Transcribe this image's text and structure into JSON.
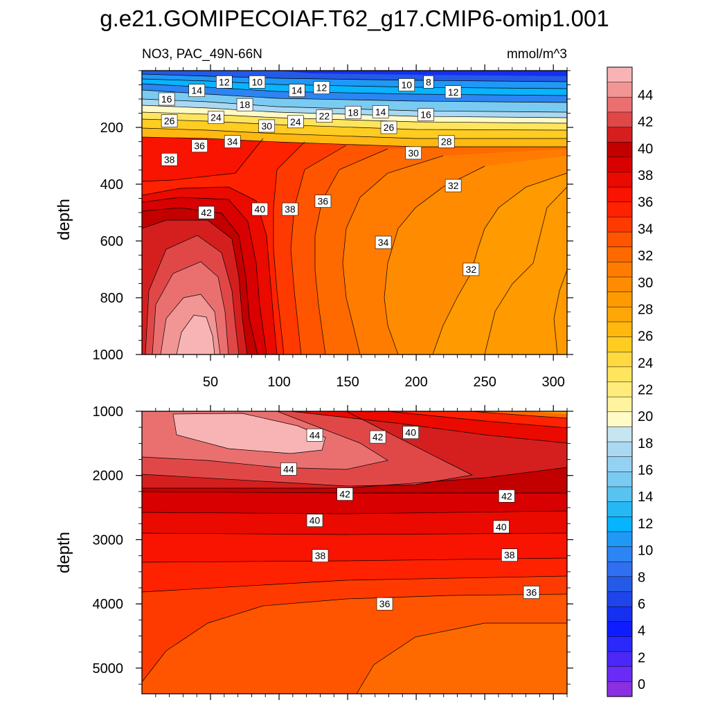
{
  "chart_data": {
    "type": "contour",
    "title": "g.e21.GOMIPECOIAF.T62_g17.CMIP6-omip1.001",
    "variable_label": "NO3, PAC_49N-66N",
    "units": "mmol/m^3",
    "colorbar": {
      "levels": [
        0,
        2,
        4,
        6,
        8,
        10,
        12,
        14,
        16,
        18,
        20,
        22,
        24,
        26,
        28,
        30,
        32,
        34,
        36,
        38,
        40,
        42,
        44
      ],
      "tick_labels": [
        "0",
        "2",
        "4",
        "6",
        "8",
        "10",
        "12",
        "14",
        "16",
        "18",
        "20",
        "22",
        "24",
        "26",
        "28",
        "30",
        "32",
        "34",
        "36",
        "38",
        "40",
        "42",
        "44"
      ],
      "colors": [
        "#8a30e0",
        "#6a2bf5",
        "#4b28f8",
        "#2a28fb",
        "#0f1cff",
        "#1530f0",
        "#1f45ea",
        "#255ae6",
        "#2f6ff0",
        "#2c85f2",
        "#2098f6",
        "#06b4ff",
        "#26b8f4",
        "#58c3f0",
        "#7acbf1",
        "#95d1f2",
        "#abd8f2",
        "#c6e5f1",
        "#fffac6",
        "#fff3a0",
        "#ffec7a",
        "#ffe55e",
        "#ffd940",
        "#ffcc22",
        "#ffb810",
        "#ffa708",
        "#ff9a00",
        "#ff8c00",
        "#ff7c00",
        "#ff6a00",
        "#ff5500",
        "#ff3a00",
        "#ff2200",
        "#f81400",
        "#ea0a00",
        "#d80000",
        "#c20000",
        "#d51f1f",
        "#e04848",
        "#ea7070",
        "#f29595",
        "#f8b4b4"
      ]
    },
    "panels": [
      {
        "name": "upper",
        "x_range": [
          0,
          310
        ],
        "y_range": [
          0,
          1000
        ],
        "ylabel": "depth",
        "x_ticks": [
          "50",
          "100",
          "150",
          "200",
          "250",
          "300"
        ],
        "y_ticks": [
          "200",
          "400",
          "600",
          "800",
          "1000"
        ],
        "x_tick_values": [
          50,
          100,
          150,
          200,
          250,
          300
        ],
        "y_tick_values": [
          200,
          400,
          600,
          800,
          1000
        ],
        "contour_labels": [
          {
            "text": "16",
            "x": 18,
            "y": 100
          },
          {
            "text": "14",
            "x": 40,
            "y": 70
          },
          {
            "text": "12",
            "x": 60,
            "y": 40
          },
          {
            "text": "10",
            "x": 84,
            "y": 40
          },
          {
            "text": "14",
            "x": 113,
            "y": 70
          },
          {
            "text": "12",
            "x": 131,
            "y": 60
          },
          {
            "text": "10",
            "x": 193,
            "y": 50
          },
          {
            "text": "8",
            "x": 209,
            "y": 40
          },
          {
            "text": "12",
            "x": 227,
            "y": 75
          },
          {
            "text": "26",
            "x": 20,
            "y": 177
          },
          {
            "text": "24",
            "x": 54,
            "y": 165
          },
          {
            "text": "18",
            "x": 75,
            "y": 120
          },
          {
            "text": "30",
            "x": 91,
            "y": 195
          },
          {
            "text": "24",
            "x": 112,
            "y": 180
          },
          {
            "text": "22",
            "x": 133,
            "y": 160
          },
          {
            "text": "18",
            "x": 154,
            "y": 147
          },
          {
            "text": "14",
            "x": 174,
            "y": 145
          },
          {
            "text": "16",
            "x": 207,
            "y": 155
          },
          {
            "text": "26",
            "x": 180,
            "y": 200
          },
          {
            "text": "28",
            "x": 222,
            "y": 250
          },
          {
            "text": "30",
            "x": 198,
            "y": 290
          },
          {
            "text": "36",
            "x": 42,
            "y": 265
          },
          {
            "text": "34",
            "x": 66,
            "y": 250
          },
          {
            "text": "38",
            "x": 20,
            "y": 313
          },
          {
            "text": "36",
            "x": 132,
            "y": 460
          },
          {
            "text": "32",
            "x": 227,
            "y": 405
          },
          {
            "text": "42",
            "x": 47,
            "y": 500
          },
          {
            "text": "40",
            "x": 86,
            "y": 488
          },
          {
            "text": "38",
            "x": 108,
            "y": 488
          },
          {
            "text": "34",
            "x": 176,
            "y": 605
          },
          {
            "text": "32",
            "x": 240,
            "y": 700
          }
        ]
      },
      {
        "name": "lower",
        "x_range": [
          0,
          310
        ],
        "y_range": [
          1000,
          5400
        ],
        "ylabel": "depth",
        "y_ticks": [
          "1000",
          "2000",
          "3000",
          "4000",
          "5000"
        ],
        "y_tick_values": [
          1000,
          2000,
          3000,
          4000,
          5000
        ],
        "contour_labels": [
          {
            "text": "44",
            "x": 126,
            "y": 1370
          },
          {
            "text": "42",
            "x": 172,
            "y": 1400
          },
          {
            "text": "40",
            "x": 196,
            "y": 1330
          },
          {
            "text": "44",
            "x": 107,
            "y": 1900
          },
          {
            "text": "42",
            "x": 148,
            "y": 2290
          },
          {
            "text": "42",
            "x": 266,
            "y": 2320
          },
          {
            "text": "40",
            "x": 126,
            "y": 2700
          },
          {
            "text": "40",
            "x": 262,
            "y": 2800
          },
          {
            "text": "38",
            "x": 130,
            "y": 3250
          },
          {
            "text": "38",
            "x": 268,
            "y": 3240
          },
          {
            "text": "36",
            "x": 177,
            "y": 4000
          },
          {
            "text": "36",
            "x": 284,
            "y": 3820
          }
        ]
      }
    ]
  }
}
